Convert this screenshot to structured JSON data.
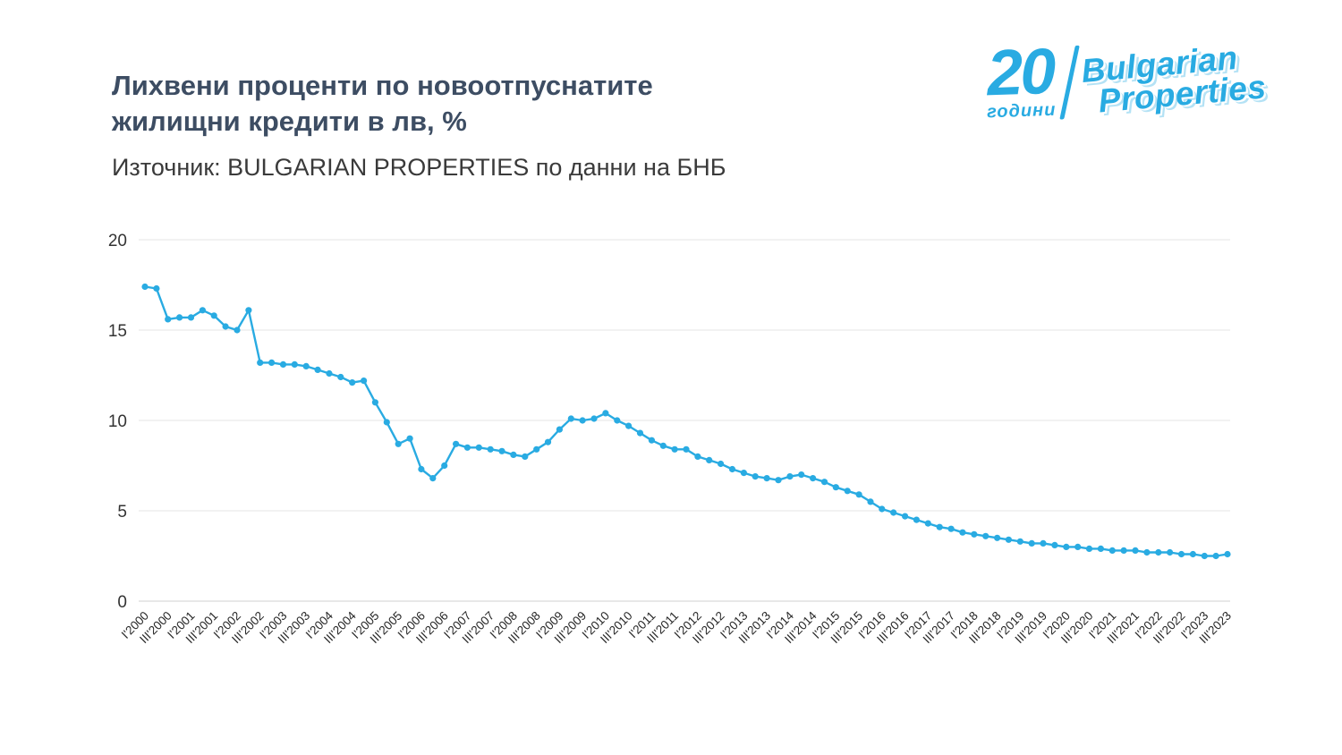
{
  "header": {
    "title_line1": "Лихвени проценти по новоотпуснатите",
    "title_line2": "жилищни кредити в лв, %",
    "subtitle": "Източник: BULGARIAN PROPERTIES по данни на БНБ"
  },
  "logo": {
    "number": "20",
    "years_label": "години",
    "brand_line1": "Bulgarian",
    "brand_line2": "Properties",
    "color": "#29abe2"
  },
  "chart_data": {
    "type": "line",
    "title": "Лихвени проценти по новоотпуснатите жилищни кредити в лв, %",
    "source": "Източник: BULGARIAN PROPERTIES по данни на БНБ",
    "xlabel": "",
    "ylabel": "",
    "line_color": "#29abe2",
    "grid": true,
    "legend_position": "none",
    "frequency": "quarterly",
    "points_per_label": 2,
    "ylim": [
      0,
      20
    ],
    "yticks": [
      0,
      5,
      10,
      15,
      20
    ],
    "x_tick_labels": [
      "I'2000",
      "III'2000",
      "I'2001",
      "III'2001",
      "I'2002",
      "III'2002",
      "I'2003",
      "III'2003",
      "I'2004",
      "III'2004",
      "I'2005",
      "III'2005",
      "I'2006",
      "III'2006",
      "I'2007",
      "III'2007",
      "I'2008",
      "III'2008",
      "I'2009",
      "III'2009",
      "I'2010",
      "III'2010",
      "I'2011",
      "III'2011",
      "I'2012",
      "III'2012",
      "I'2013",
      "III'2013",
      "I'2014",
      "III'2014",
      "I'2015",
      "III'2015",
      "I'2016",
      "III'2016",
      "I'2017",
      "III'2017",
      "I'2018",
      "III'2018",
      "I'2019",
      "III'2019",
      "I'2020",
      "III'2020",
      "I'2021",
      "III'2021",
      "I'2022",
      "III'2022",
      "I'2023",
      "III'2023"
    ],
    "values": [
      17.4,
      17.3,
      15.6,
      15.7,
      15.7,
      16.1,
      15.8,
      15.2,
      15.0,
      16.1,
      13.2,
      13.2,
      13.1,
      13.1,
      13.0,
      12.8,
      12.6,
      12.4,
      12.1,
      12.2,
      11.0,
      9.9,
      8.7,
      9.0,
      7.3,
      6.8,
      7.5,
      8.7,
      8.5,
      8.5,
      8.4,
      8.3,
      8.1,
      8.0,
      8.4,
      8.8,
      9.5,
      10.1,
      10.0,
      10.1,
      10.4,
      10.0,
      9.7,
      9.3,
      8.9,
      8.6,
      8.4,
      8.4,
      8.0,
      7.8,
      7.6,
      7.3,
      7.1,
      6.9,
      6.8,
      6.7,
      6.9,
      7.0,
      6.8,
      6.6,
      6.3,
      6.1,
      5.9,
      5.5,
      5.1,
      4.9,
      4.7,
      4.5,
      4.3,
      4.1,
      4.0,
      3.8,
      3.7,
      3.6,
      3.5,
      3.4,
      3.3,
      3.2,
      3.2,
      3.1,
      3.0,
      3.0,
      2.9,
      2.9,
      2.8,
      2.8,
      2.8,
      2.7,
      2.7,
      2.7,
      2.6,
      2.6,
      2.5,
      2.5,
      2.6
    ]
  }
}
